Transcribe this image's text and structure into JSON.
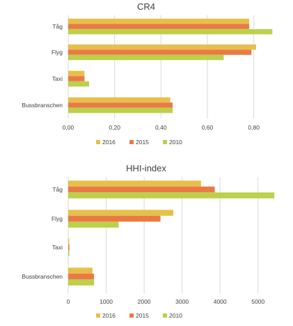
{
  "colors": {
    "2016": "#e6c04a",
    "2015": "#ea7a45",
    "2010": "#bcd04a"
  },
  "chart_data": [
    {
      "type": "bar",
      "orientation": "horizontal",
      "title": "CR4",
      "categories": [
        "Tåg",
        "Flyg",
        "Taxi",
        "Bussbranschen"
      ],
      "series": [
        {
          "name": "2016",
          "values": [
            0.78,
            0.81,
            0.07,
            0.44
          ]
        },
        {
          "name": "2015",
          "values": [
            0.78,
            0.79,
            0.07,
            0.45
          ]
        },
        {
          "name": "2010",
          "values": [
            0.88,
            0.67,
            0.09,
            0.45
          ]
        }
      ],
      "xlim": [
        0,
        0.9
      ],
      "ticks": [
        "0,00",
        "0,20",
        "0,40",
        "0,60",
        "0,80"
      ],
      "tick_values": [
        0,
        0.2,
        0.4,
        0.6,
        0.8
      ],
      "grid": true,
      "legend": "bottom"
    },
    {
      "type": "bar",
      "orientation": "horizontal",
      "title": "HHI-index",
      "categories": [
        "Tåg",
        "Flyg",
        "Taxi",
        "Bussbranschen"
      ],
      "series": [
        {
          "name": "2016",
          "values": [
            3500,
            2770,
            25,
            640
          ]
        },
        {
          "name": "2015",
          "values": [
            3860,
            2430,
            30,
            680
          ]
        },
        {
          "name": "2010",
          "values": [
            5430,
            1330,
            30,
            680
          ]
        }
      ],
      "xlim": [
        0,
        5500
      ],
      "ticks": [
        "0",
        "1000",
        "2000",
        "3000",
        "4000",
        "5000"
      ],
      "tick_values": [
        0,
        1000,
        2000,
        3000,
        4000,
        5000
      ],
      "grid": true,
      "legend": "bottom"
    }
  ]
}
